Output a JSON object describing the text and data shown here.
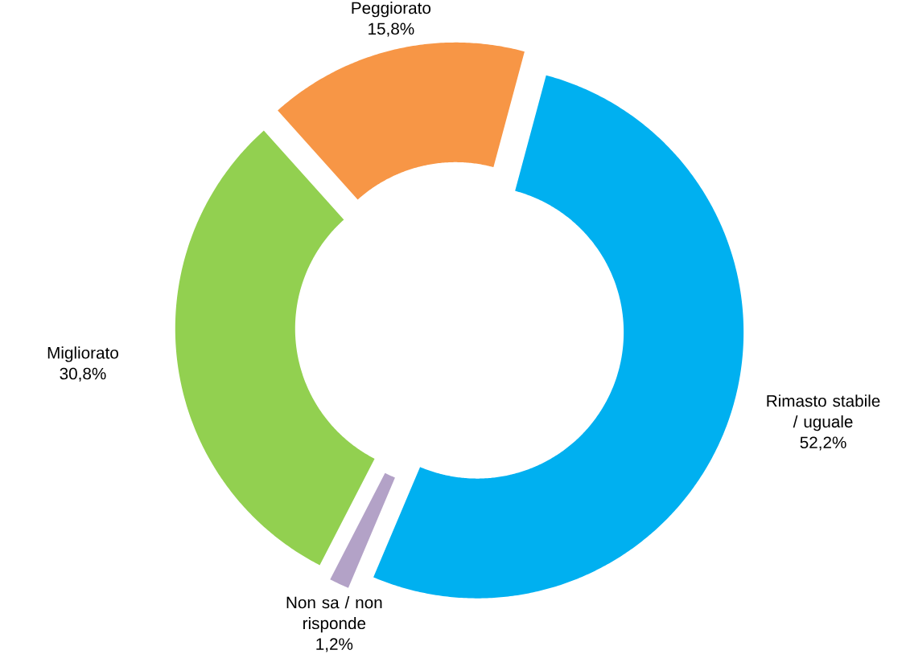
{
  "chart_data": {
    "type": "donut",
    "categories": [
      "Rimasto stabile / uguale",
      "Non sa / non risponde",
      "Migliorato",
      "Peggiorato"
    ],
    "values": [
      52.2,
      1.2,
      30.8,
      15.8
    ],
    "colors": [
      "#00b0f0",
      "#b3a2c7",
      "#92d050",
      "#f79646"
    ],
    "value_labels": [
      "52,2%",
      "1,2%",
      "30,8%",
      "15,8%"
    ]
  }
}
